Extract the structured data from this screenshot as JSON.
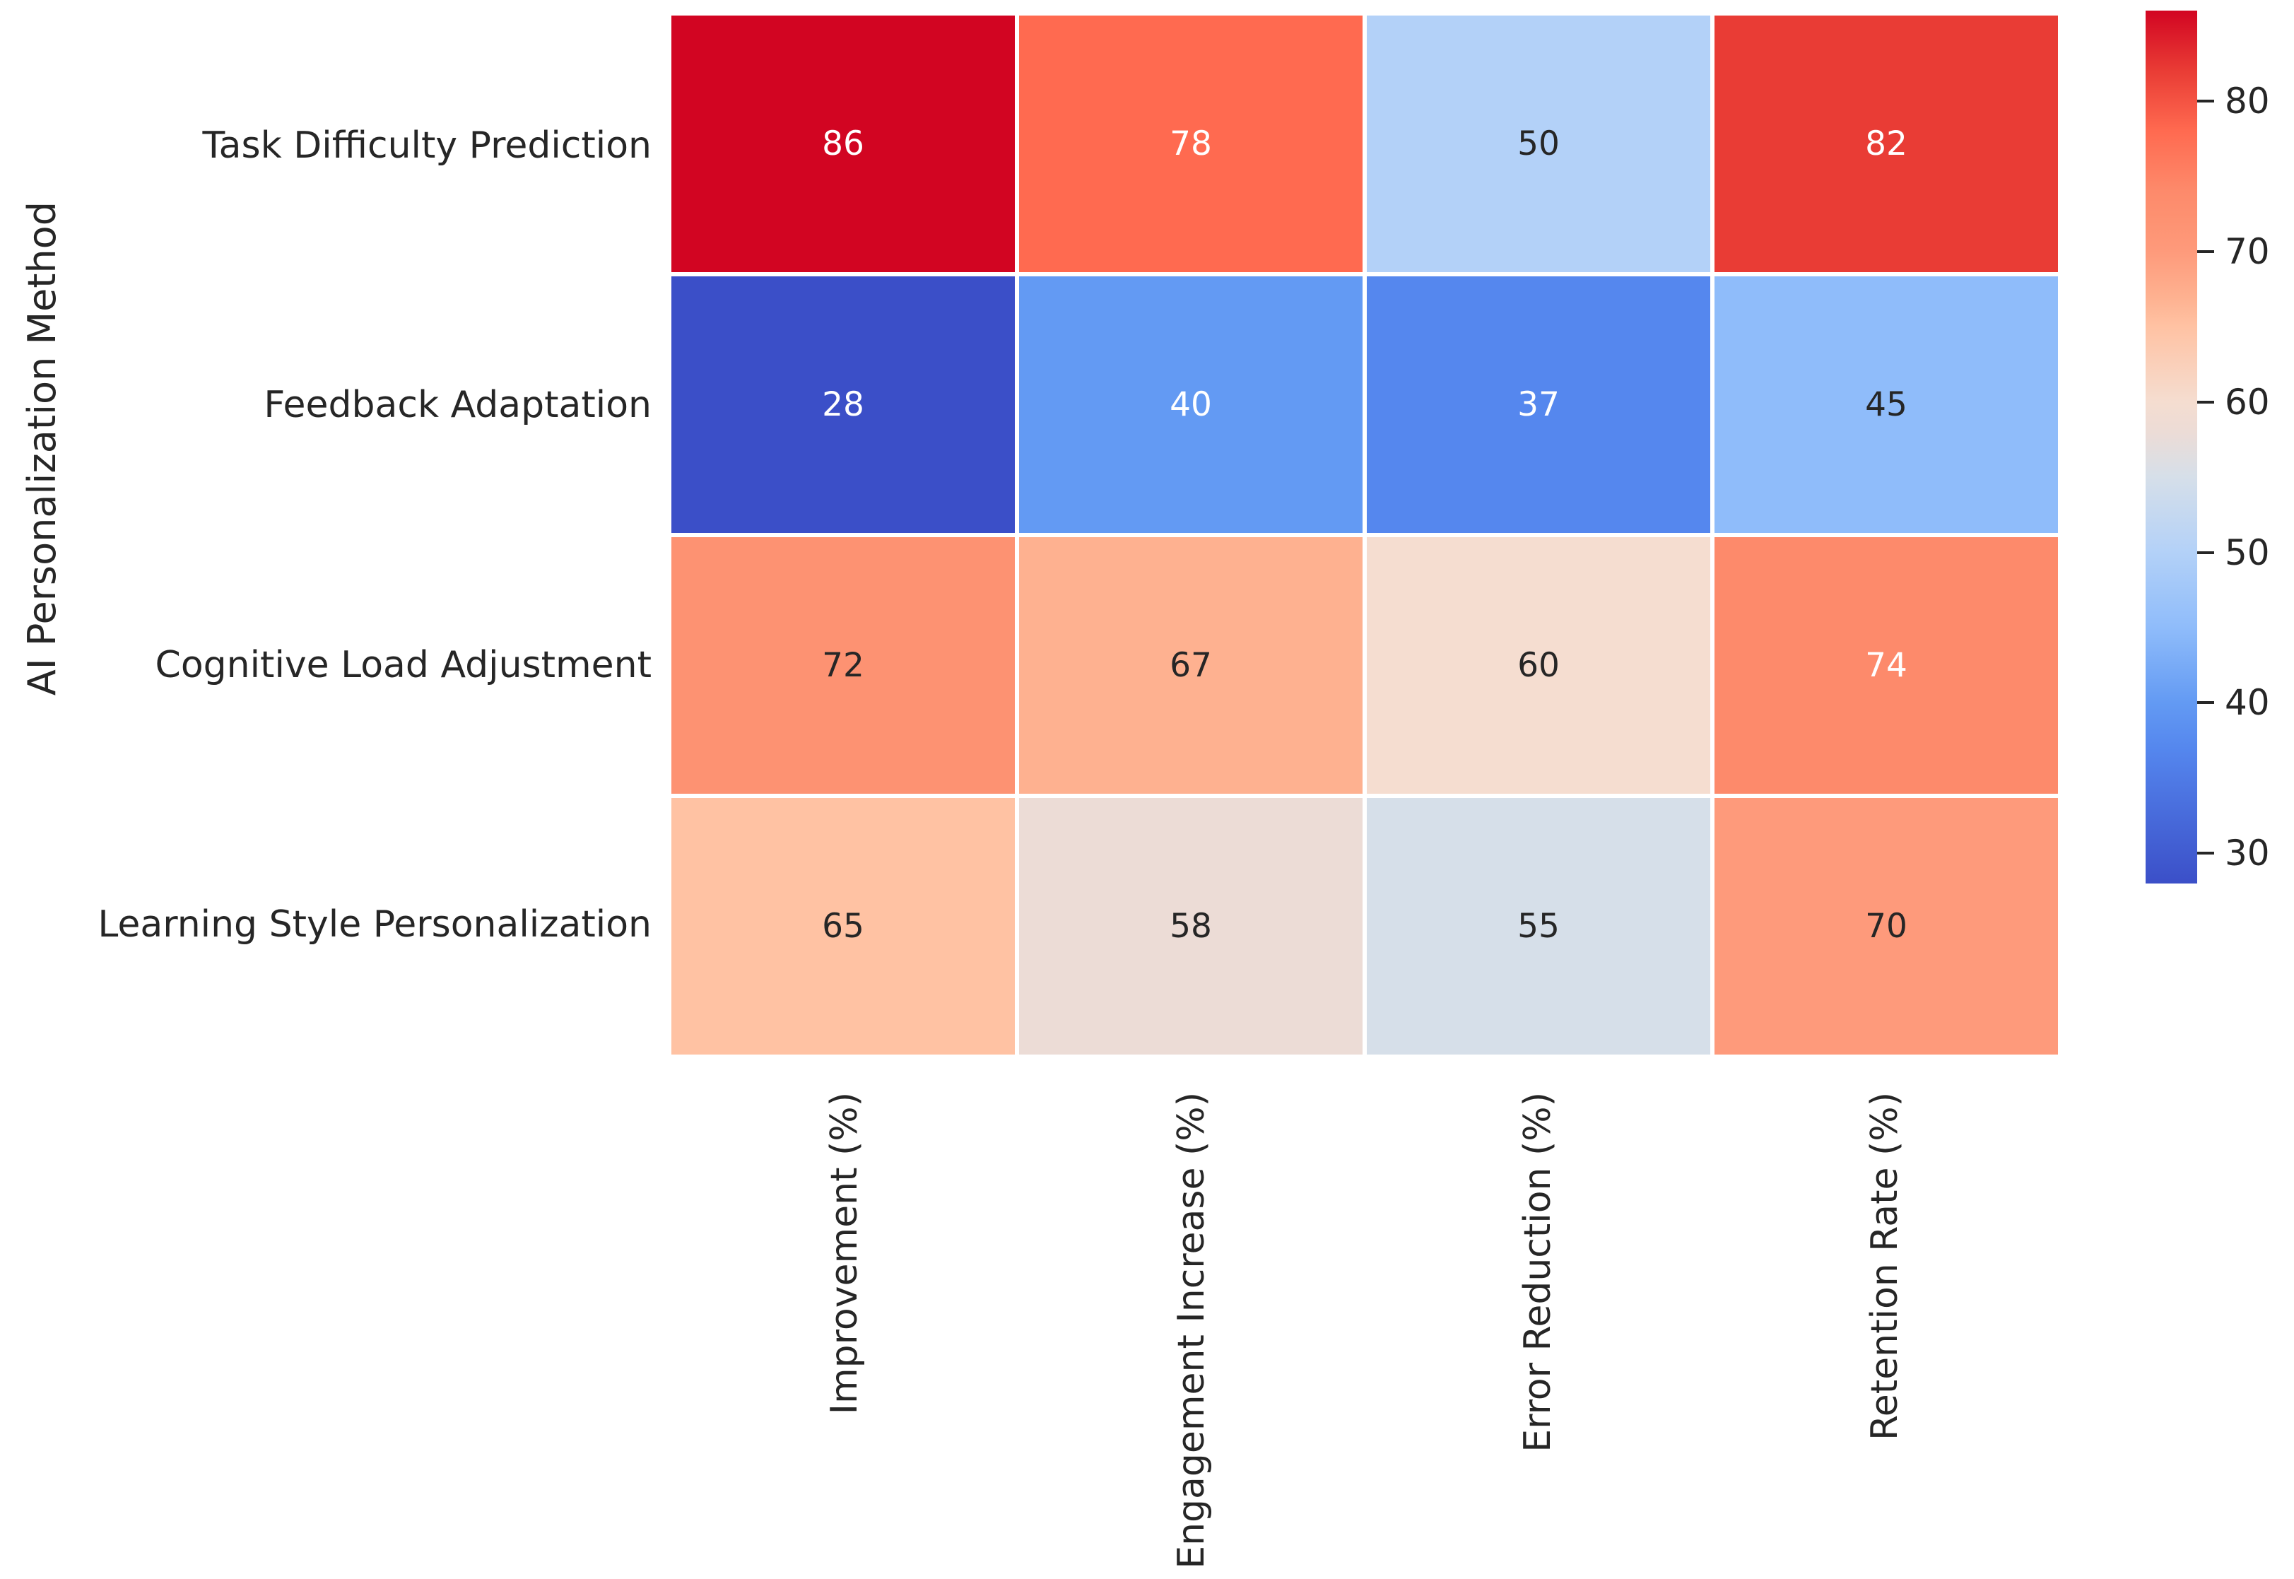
{
  "figure": {
    "background": "#ffffff",
    "text_color": "#262626"
  },
  "chart_data": {
    "type": "heatmap",
    "title": "",
    "xlabel": "",
    "ylabel": "AI Personalization Method",
    "rows": [
      "Task Difficulty Prediction",
      "Feedback Adaptation",
      "Cognitive Load Adjustment",
      "Learning Style Personalization"
    ],
    "columns": [
      "Improvement (%)",
      "Engagement Increase (%)",
      "Error Reduction (%)",
      "Retention Rate (%)"
    ],
    "values": [
      [
        86,
        78,
        50,
        82
      ],
      [
        28,
        40,
        37,
        45
      ],
      [
        72,
        67,
        60,
        74
      ],
      [
        65,
        58,
        55,
        70
      ]
    ],
    "cell_colors": [
      [
        "#d20522",
        "#ff6a50",
        "#b3d1f8",
        "#e93c35"
      ],
      [
        "#3b4fc8",
        "#639af3",
        "#5587ee",
        "#8fbcfa"
      ],
      [
        "#fd9272",
        "#feb190",
        "#f5ddd0",
        "#fd8a6b"
      ],
      [
        "#ffc2a3",
        "#ecdcd6",
        "#d6dfe9",
        "#fe9a7b"
      ]
    ],
    "cell_text_colors": [
      [
        "#ffffff",
        "#ffffff",
        "#262626",
        "#ffffff"
      ],
      [
        "#ffffff",
        "#ffffff",
        "#ffffff",
        "#262626"
      ],
      [
        "#262626",
        "#262626",
        "#262626",
        "#ffffff"
      ],
      [
        "#262626",
        "#262626",
        "#262626",
        "#262626"
      ]
    ],
    "colormap": "coolwarm",
    "vmin": 28,
    "vmax": 86,
    "grid_on": false,
    "legend_position": "right-colorbar",
    "colorbar": {
      "ticks": [
        80,
        70,
        60,
        50,
        40,
        30
      ],
      "gradient_stops": [
        {
          "pos": 0.0,
          "color": "#d20522"
        },
        {
          "pos": 6.9,
          "color": "#e93c35"
        },
        {
          "pos": 13.8,
          "color": "#ff6a50"
        },
        {
          "pos": 20.7,
          "color": "#fd8a6b"
        },
        {
          "pos": 24.1,
          "color": "#fd9272"
        },
        {
          "pos": 27.6,
          "color": "#fe9a7b"
        },
        {
          "pos": 32.8,
          "color": "#feb190"
        },
        {
          "pos": 36.2,
          "color": "#ffc2a3"
        },
        {
          "pos": 44.8,
          "color": "#f5ddd0"
        },
        {
          "pos": 48.3,
          "color": "#ecdcd6"
        },
        {
          "pos": 53.4,
          "color": "#d6dfe9"
        },
        {
          "pos": 62.1,
          "color": "#b3d1f8"
        },
        {
          "pos": 70.7,
          "color": "#8fbcfa"
        },
        {
          "pos": 79.3,
          "color": "#639af3"
        },
        {
          "pos": 84.5,
          "color": "#5587ee"
        },
        {
          "pos": 100.0,
          "color": "#3b4fc8"
        }
      ]
    }
  }
}
